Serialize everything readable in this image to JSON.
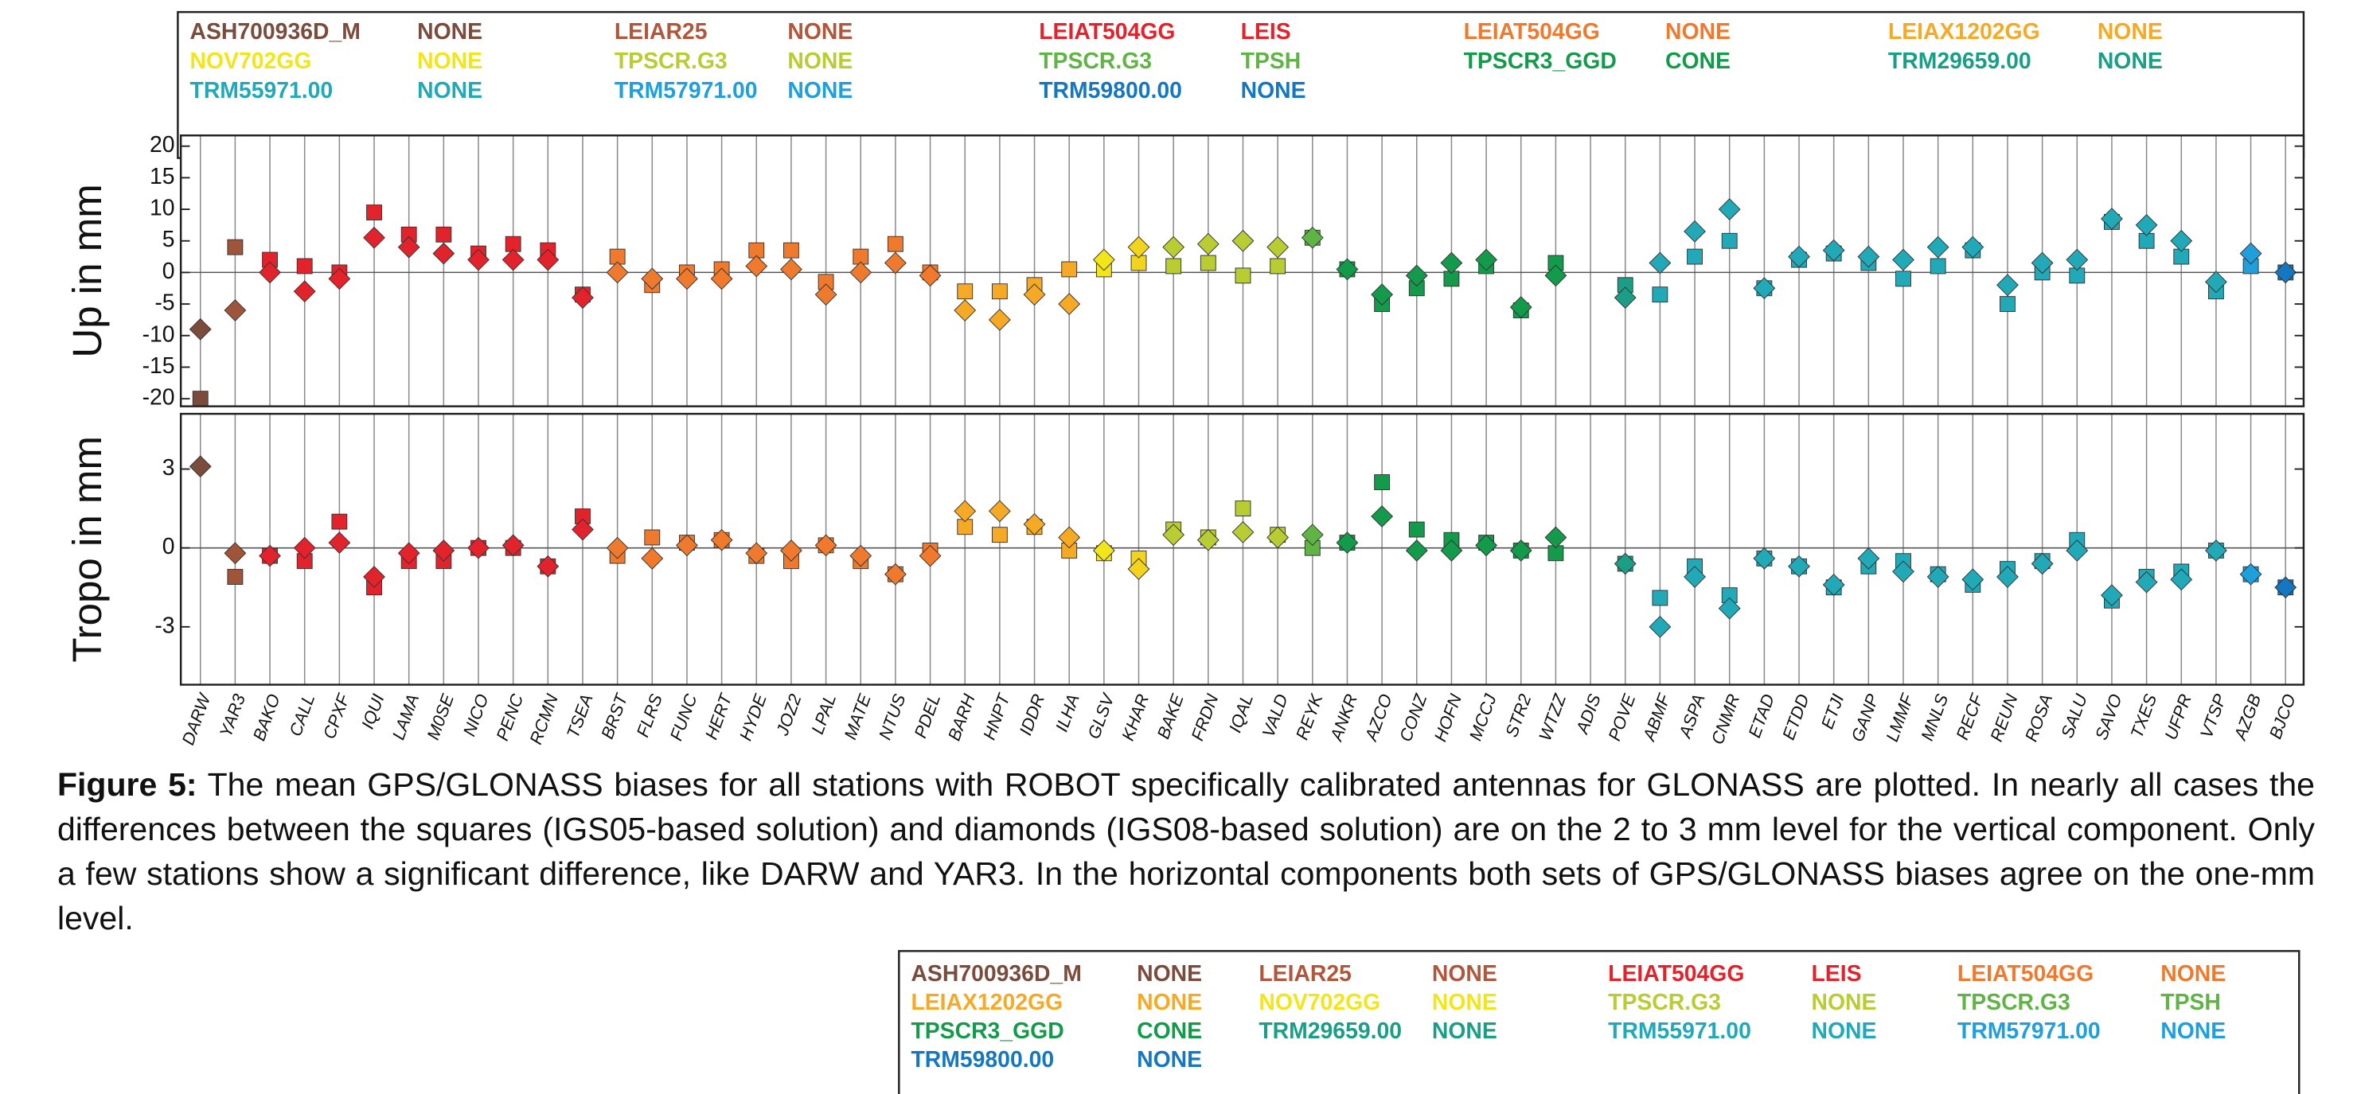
{
  "chart_data": {
    "type": "scatter",
    "categories": [
      "DARW",
      "YAR3",
      "BAKO",
      "CALL",
      "CPXF",
      "IQUI",
      "LAMA",
      "M0SE",
      "NICO",
      "PENC",
      "RCMN",
      "TSEA",
      "BRST",
      "FLRS",
      "FUNC",
      "HERT",
      "HYDE",
      "JOZ2",
      "LPAL",
      "MATE",
      "NTUS",
      "PDEL",
      "BARH",
      "HNPT",
      "IDDR",
      "ILHA",
      "GLSV",
      "KHAR",
      "BAKE",
      "FRDN",
      "IQAL",
      "VALD",
      "REYK",
      "ANKR",
      "AZCO",
      "CONZ",
      "HOFN",
      "MCCJ",
      "STR2",
      "WTZZ",
      "ADIS",
      "POVE",
      "ABMF",
      "ASPA",
      "CNMR",
      "ETAD",
      "ETDD",
      "ETJI",
      "GANP",
      "LMMF",
      "MNLS",
      "RECF",
      "REUN",
      "ROSA",
      "SALU",
      "SAVO",
      "TXES",
      "UFPR",
      "VTSP",
      "AZGB",
      "BJCO"
    ],
    "point_colors": [
      "#7b4b3c",
      "#a0553a",
      "#e3232c",
      "#e3232c",
      "#e3232c",
      "#e3232c",
      "#e3232c",
      "#e3232c",
      "#e3232c",
      "#e3232c",
      "#e3232c",
      "#e3232c",
      "#ef7a2d",
      "#ef7a2d",
      "#ef7a2d",
      "#ef7a2d",
      "#ef7a2d",
      "#ef7a2d",
      "#ef7a2d",
      "#ef7a2d",
      "#ef7a2d",
      "#ef7a2d",
      "#f6a924",
      "#f6a924",
      "#f6a924",
      "#f6a924",
      "#f2e61a",
      "#f2d41f",
      "#b9cc32",
      "#b9cc32",
      "#b9cc32",
      "#b9cc32",
      "#60b446",
      "#139a4a",
      "#139a4a",
      "#139a4a",
      "#139a4a",
      "#139a4a",
      "#139a4a",
      "#139a4a",
      "#139a4a",
      "#1a9f86",
      "#21a9b8",
      "#21a9b8",
      "#21a9b8",
      "#21a9b8",
      "#21a9b8",
      "#21a9b8",
      "#21a9b8",
      "#21a9b8",
      "#21a9b8",
      "#21a9b8",
      "#21a9b8",
      "#21a9b8",
      "#21a9b8",
      "#21a9b8",
      "#21a9b8",
      "#21a9b8",
      "#21a9b8",
      "#1fa0dc",
      "#1577c0"
    ],
    "legend": [
      {
        "antenna": "ASH700936D_M",
        "radome": "NONE",
        "color": "#7b4b3c"
      },
      {
        "antenna": "LEIAR25",
        "radome": "NONE",
        "color": "#b0573b"
      },
      {
        "antenna": "LEIAT504GG",
        "radome": "LEIS",
        "color": "#e3232c"
      },
      {
        "antenna": "LEIAT504GG",
        "radome": "NONE",
        "color": "#ef7a2d"
      },
      {
        "antenna": "LEIAX1202GG",
        "radome": "NONE",
        "color": "#f6a924"
      },
      {
        "antenna": "NOV702GG",
        "radome": "NONE",
        "color": "#f2e61a"
      },
      {
        "antenna": "TPSCR.G3",
        "radome": "NONE",
        "color": "#b9cc32"
      },
      {
        "antenna": "TPSCR.G3",
        "radome": "TPSH",
        "color": "#60b446"
      },
      {
        "antenna": "TPSCR3_GGD",
        "radome": "CONE",
        "color": "#139a4a"
      },
      {
        "antenna": "TRM29659.00",
        "radome": "NONE",
        "color": "#1a9f86"
      },
      {
        "antenna": "TRM55971.00",
        "radome": "NONE",
        "color": "#21a9b8"
      },
      {
        "antenna": "TRM57971.00",
        "radome": "NONE",
        "color": "#1fa0dc"
      },
      {
        "antenna": "TRM59800.00",
        "radome": "NONE",
        "color": "#1577c0"
      }
    ],
    "panels": [
      {
        "ylabel": "Up in mm",
        "ylim": [
          -21.2,
          21.7
        ],
        "yticks": [
          20,
          15,
          10,
          5,
          0,
          -5,
          -10,
          -15,
          -20
        ],
        "series": [
          {
            "marker": "square",
            "values": [
              -20,
              4,
              2,
              1,
              0,
              9.5,
              6,
              6,
              3,
              4.5,
              3.5,
              -3.5,
              2.5,
              -2,
              0,
              0.5,
              3.5,
              3.5,
              -1.5,
              2.5,
              4.5,
              0,
              -3,
              -3,
              -2,
              0.5,
              0.5,
              1.5,
              1,
              1.5,
              -0.5,
              1,
              5.5,
              0.5,
              -5,
              -2.5,
              -1,
              1,
              -6,
              1.5,
              null,
              -2,
              -3.5,
              2.5,
              5,
              -2.5,
              2,
              3,
              1.5,
              -1,
              1,
              3.5,
              -5,
              0,
              -0.5,
              8,
              5,
              2.5,
              -3,
              1,
              0
            ]
          },
          {
            "marker": "diamond",
            "values": [
              -9,
              -6,
              0,
              -3,
              -1,
              5.5,
              4,
              3,
              2,
              2,
              2,
              -4,
              0,
              -1,
              -1,
              -1,
              1,
              0.5,
              -3.5,
              0,
              1.5,
              -0.5,
              -6,
              -7.5,
              -3.5,
              -5,
              2,
              4,
              4,
              4.5,
              5,
              4,
              5.5,
              0.5,
              -3.5,
              -0.5,
              1.5,
              2,
              -5.5,
              -0.5,
              null,
              -4,
              1.5,
              6.5,
              10,
              -2.5,
              2.5,
              3.5,
              2.5,
              2,
              4,
              4,
              -2,
              1.5,
              2,
              8.5,
              7.5,
              5,
              -1.5,
              3,
              0
            ]
          }
        ]
      },
      {
        "ylabel": "Tropo in mm",
        "ylim": [
          -5.2,
          5.1
        ],
        "yticks": [
          3,
          0,
          -3
        ],
        "series": [
          {
            "marker": "square",
            "values": [
              null,
              -1.1,
              -0.3,
              -0.5,
              1,
              -1.5,
              -0.5,
              -0.5,
              0,
              0,
              -0.7,
              1.2,
              -0.3,
              0.4,
              0.2,
              0.3,
              -0.3,
              -0.5,
              0.1,
              -0.5,
              -1,
              -0.1,
              0.8,
              0.5,
              0.8,
              -0.1,
              -0.2,
              -0.4,
              0.7,
              0.4,
              1.5,
              0.5,
              0,
              0.2,
              2.5,
              0.7,
              0.3,
              0.2,
              -0.1,
              -0.2,
              null,
              -0.6,
              -1.9,
              -0.7,
              -1.8,
              -0.4,
              -0.7,
              -1.5,
              -0.7,
              -0.5,
              -1,
              -1.4,
              -0.8,
              -0.5,
              0.3,
              -2,
              -1.1,
              -0.9,
              -0.1,
              -1,
              -1.5
            ]
          },
          {
            "marker": "diamond",
            "values": [
              3.1,
              -0.2,
              -0.3,
              0,
              0.2,
              -1.1,
              -0.2,
              -0.1,
              0,
              0.1,
              -0.7,
              0.7,
              0,
              -0.4,
              0.1,
              0.3,
              -0.2,
              -0.1,
              0.1,
              -0.3,
              -1,
              -0.3,
              1.4,
              1.4,
              0.9,
              0.4,
              -0.1,
              -0.8,
              0.5,
              0.3,
              0.6,
              0.4,
              0.5,
              0.2,
              1.2,
              -0.1,
              -0.1,
              0.1,
              -0.1,
              0.4,
              null,
              -0.6,
              -3,
              -1.1,
              -2.3,
              -0.4,
              -0.7,
              -1.4,
              -0.4,
              -0.9,
              -1.1,
              -1.2,
              -1.1,
              -0.6,
              -0.1,
              -1.8,
              -1.3,
              -1.2,
              -0.1,
              -1,
              -1.5
            ]
          }
        ]
      }
    ]
  },
  "caption": {
    "label": "Figure 5:",
    "text": "The mean GPS/GLONASS biases for all stations with ROBOT specifically calibrated antennas for GLONASS are plotted. In nearly all cases the differences between the squares (IGS05-based solution) and diamonds (IGS08-based solution) are on the 2 to 3 mm level for the vertical component. Only a few stations show a significant difference, like DARW and YAR3. In the horizontal components both sets of GPS/GLONASS biases agree on the one-mm level."
  }
}
